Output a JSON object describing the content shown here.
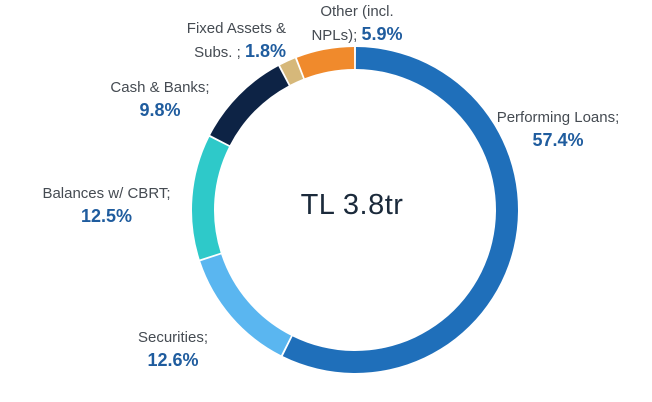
{
  "chart_data": {
    "type": "donut",
    "center_label": "TL 3.8tr",
    "slices": [
      {
        "name": "Performing Loans;",
        "value": 57.4,
        "pct_label": "57.4%",
        "color": "#1f6fba"
      },
      {
        "name": "Securities;",
        "value": 12.6,
        "pct_label": "12.6%",
        "color": "#5ab6f0"
      },
      {
        "name": "Balances w/ CBRT;",
        "value": 12.5,
        "pct_label": "12.5%",
        "color": "#2ec9c9"
      },
      {
        "name": "Cash & Banks;",
        "value": 9.8,
        "pct_label": "9.8%",
        "color": "#0d2345"
      },
      {
        "name": "Fixed Assets & Subs. ;",
        "value": 1.8,
        "pct_label": "1.8%",
        "color": "#d6b87a"
      },
      {
        "name": "Other (incl. NPLs);",
        "value": 5.9,
        "pct_label": "5.9%",
        "color": "#f08a2c"
      }
    ]
  },
  "labels": {
    "loans": {
      "line1": "Performing Loans;",
      "pct": "57.4%"
    },
    "securities": {
      "line1": "Securities;",
      "pct": "12.6%"
    },
    "cbrt": {
      "line1": "Balances w/ CBRT;",
      "pct": "12.5%"
    },
    "cash": {
      "line1": "Cash & Banks;",
      "pct": "9.8%"
    },
    "fixed": {
      "line1": "Fixed Assets &",
      "line2": "Subs. ;",
      "pct": "1.8%"
    },
    "other": {
      "line1": "Other (incl.",
      "line2": "NPLs);",
      "pct": "5.9%"
    }
  }
}
